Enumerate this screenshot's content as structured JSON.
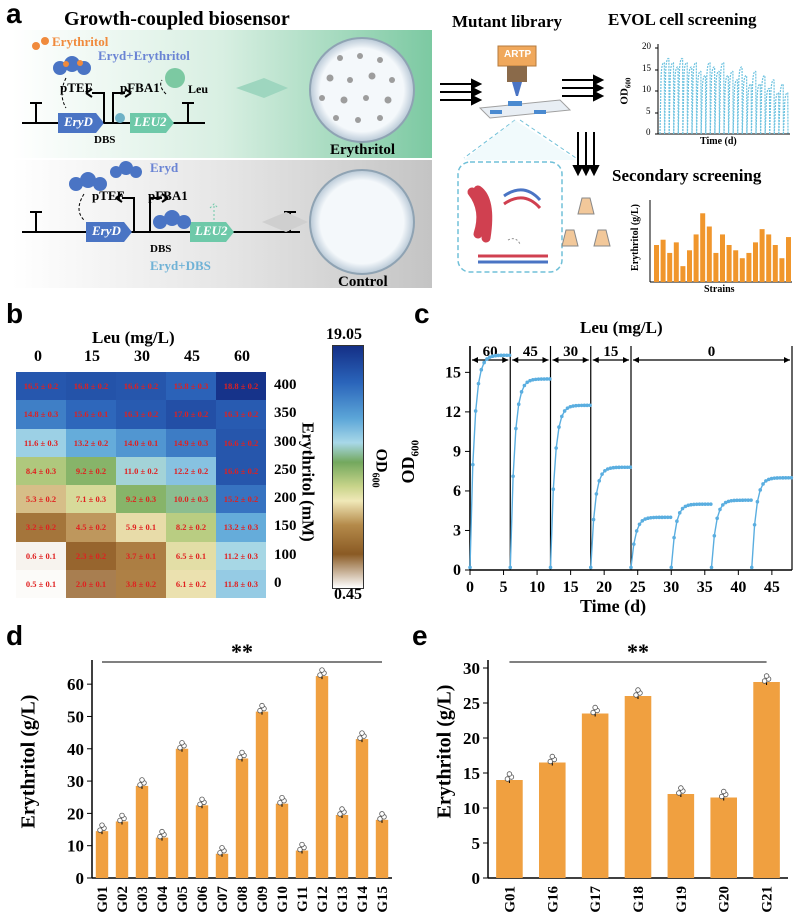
{
  "panels": {
    "a": "a",
    "b": "b",
    "c": "c",
    "d": "d",
    "e": "e"
  },
  "panel_a": {
    "title": "Growth-coupled biosensor",
    "erythritol": "Erythritol",
    "eryd_erythritol": "Eryd+Erythritol",
    "ptef": "pTEF",
    "pfba1": "pFBA1",
    "leu": "Leu",
    "dbs": "DBS",
    "eryd_gene": "EryD",
    "leu2_gene": "LEU2",
    "plate_top_label": "Erythritol",
    "eryd": "Eryd",
    "eryd_dbs": "Eryd+DBS",
    "plate_bottom_label": "Control",
    "mutant_library": "Mutant library",
    "artp": "ARTP",
    "evol_title": "EVOL cell screening",
    "evol_xlabel": "Time (d)",
    "evol_ylabel": "OD",
    "evol_ylabel_sub": "600",
    "evol_yticks": [
      "0",
      "5",
      "10",
      "15",
      "20"
    ],
    "secondary_title": "Secondary screening",
    "secondary_xlabel": "Strains",
    "secondary_ylabel": "Erythritol (g/L)",
    "secondary_bars": [
      14,
      16,
      11,
      15,
      6,
      12,
      18,
      26,
      21,
      11,
      18,
      14,
      12,
      9,
      11,
      15,
      20,
      18,
      14,
      9,
      17
    ]
  },
  "panel_b": {
    "xlabel": "Leu (mg/L)",
    "ylabel": "Erythritol (mM)",
    "leu": [
      "0",
      "15",
      "30",
      "45",
      "60"
    ],
    "erythritol": [
      "400",
      "350",
      "300",
      "250",
      "200",
      "150",
      "100",
      "0"
    ],
    "values": [
      [
        "16.5 ± 0.2",
        "16.8 ± 0.2",
        "16.6 ± 0.2",
        "15.8 ± 0.3",
        "18.8 ± 0.2"
      ],
      [
        "14.8 ± 0.3",
        "15.6 ± 0.1",
        "16.3 ± 0.2",
        "17.0 ± 0.2",
        "16.3 ± 0.2"
      ],
      [
        "11.6 ± 0.3",
        "13.2 ± 0.2",
        "14.0 ± 0.1",
        "14.9 ± 0.3",
        "16.6 ± 0.2"
      ],
      [
        "8.4 ± 0.3",
        "9.2 ± 0.2",
        "11.0 ± 0.2",
        "12.2 ± 0.2",
        "16.6 ± 0.2"
      ],
      [
        "5.3 ± 0.2",
        "7.1 ± 0.3",
        "9.2 ± 0.3",
        "10.0 ± 0.3",
        "15.2 ± 0.2"
      ],
      [
        "3.2 ± 0.2",
        "4.5 ± 0.2",
        "5.9 ± 0.1",
        "8.2 ± 0.2",
        "13.2 ± 0.3"
      ],
      [
        "0.6 ± 0.1",
        "2.3 ± 0.2",
        "3.7 ± 0.1",
        "6.5 ± 0.1",
        "11.2 ± 0.3"
      ],
      [
        "0.5 ± 0.1",
        "2.0 ± 0.1",
        "3.8 ± 0.2",
        "6.1 ± 0.2",
        "11.8 ± 0.3"
      ]
    ],
    "od": [
      [
        16.5,
        16.8,
        16.6,
        15.8,
        18.8
      ],
      [
        14.8,
        15.6,
        16.3,
        17.0,
        16.3
      ],
      [
        11.6,
        13.2,
        14.0,
        14.9,
        16.6
      ],
      [
        8.4,
        9.2,
        11.0,
        12.2,
        16.6
      ],
      [
        5.3,
        7.1,
        9.2,
        10.0,
        15.2
      ],
      [
        3.2,
        4.5,
        5.9,
        8.2,
        13.2
      ],
      [
        0.6,
        2.3,
        3.7,
        6.5,
        11.2
      ],
      [
        0.5,
        2.0,
        3.8,
        6.1,
        11.8
      ]
    ],
    "colorbar_max": "19.05",
    "colorbar_min": "0.45",
    "colorbar_label": "OD",
    "colorbar_label_sub": "600"
  },
  "chart_data": [
    {
      "panel": "c",
      "type": "line",
      "title": "Leu (mg/L)",
      "xlabel": "Time (d)",
      "ylabel": "OD",
      "ylabel_sub": "600",
      "xlim": [
        0,
        48
      ],
      "ylim": [
        0,
        17
      ],
      "xticks": [
        0,
        5,
        10,
        15,
        20,
        25,
        30,
        35,
        40,
        45
      ],
      "yticks": [
        0,
        3,
        6,
        9,
        12,
        15
      ],
      "segments": [
        {
          "label": "60",
          "start": 0,
          "end": 6
        },
        {
          "label": "45",
          "start": 6,
          "end": 12
        },
        {
          "label": "30",
          "start": 12,
          "end": 18
        },
        {
          "label": "15",
          "start": 18,
          "end": 24
        },
        {
          "label": "0",
          "start": 24,
          "end": 48
        }
      ],
      "series": [
        {
          "start": 0,
          "plateau": 16.3
        },
        {
          "start": 6,
          "plateau": 14.5
        },
        {
          "start": 12,
          "plateau": 12.5
        },
        {
          "start": 18,
          "plateau": 7.8
        },
        {
          "start": 24,
          "plateau": 4.0
        },
        {
          "start": 30,
          "plateau": 5.0
        },
        {
          "start": 36,
          "plateau": 5.3
        },
        {
          "start": 42,
          "plateau": 7.0
        }
      ],
      "color": "#5aaee0"
    },
    {
      "panel": "d",
      "type": "bar",
      "ylabel": "Erythritol (g/L)",
      "categories": [
        "G01",
        "G02",
        "G03",
        "G04",
        "G05",
        "G06",
        "G07",
        "G08",
        "G09",
        "G10",
        "G11",
        "G12",
        "G13",
        "G14",
        "G15"
      ],
      "values": [
        14.5,
        17.5,
        28.5,
        12.5,
        40,
        22.5,
        7.5,
        37,
        51.5,
        23,
        8.5,
        62.5,
        19.5,
        43,
        18
      ],
      "ylim": [
        0,
        65
      ],
      "yticks": [
        0,
        10,
        20,
        30,
        40,
        50,
        60
      ],
      "significance": "**",
      "color": "#f0a040"
    },
    {
      "panel": "e",
      "type": "bar",
      "ylabel": "Erythritol (g/L)",
      "categories": [
        "G01",
        "G16",
        "G17",
        "G18",
        "G19",
        "G20",
        "G21"
      ],
      "values": [
        14,
        16.5,
        23.5,
        26,
        12,
        11.5,
        28
      ],
      "ylim": [
        0,
        30
      ],
      "yticks": [
        0,
        5,
        10,
        15,
        20,
        25,
        30
      ],
      "significance": "**",
      "color": "#f0a040"
    }
  ]
}
